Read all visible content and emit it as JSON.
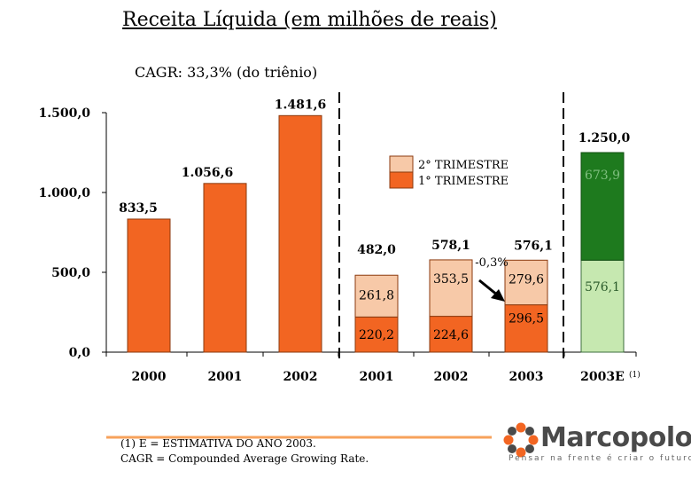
{
  "title": "Receita Líquida  (em milhões de reais)",
  "cagr_note": "CAGR: 33,3% (do triênio)",
  "footnotes": [
    "(1)  E  = ESTIMATIVA DO ANO 2003.",
    "CAGR = Compounded Average Growing Rate."
  ],
  "logo": {
    "name": "Marcopolo",
    "tagline": "Pensar na frente é criar o futuro.",
    "icon": "marcopolo-flower-icon"
  },
  "colors": {
    "bar_orange": "#F26522",
    "bar_outline": "#8B3A0F",
    "q2_light": "#F7C9A8",
    "q1_orange": "#F26522",
    "green_dark": "#1E7A1E",
    "green_light": "#C6E8B0",
    "axis": "#000000",
    "separator": "#000000",
    "footer_line": "#F7A25B"
  },
  "chart_data": {
    "type": "bar",
    "ylim": [
      0,
      1500
    ],
    "yticks": [
      0,
      500,
      1000,
      1500
    ],
    "ytick_labels": [
      "0,0",
      "500,0",
      "1.000,0",
      "1.500,0"
    ],
    "categories": [
      "2000",
      "2001",
      "2002",
      "2001",
      "2002",
      "2003",
      "2003E"
    ],
    "category_note": "(1)",
    "annual": [
      {
        "label": "2000",
        "value": 833.5,
        "value_label": "833,5"
      },
      {
        "label": "2001",
        "value": 1056.6,
        "value_label": "1.056,6"
      },
      {
        "label": "2002",
        "value": 1481.6,
        "value_label": "1.481,6"
      }
    ],
    "semester": [
      {
        "label": "2001",
        "q1": 220.2,
        "q1_label": "220,2",
        "q2": 261.8,
        "q2_label": "261,8",
        "total_label": "482,0"
      },
      {
        "label": "2002",
        "q1": 224.6,
        "q1_label": "224,6",
        "q2": 353.5,
        "q2_label": "353,5",
        "total_label": "578,1"
      },
      {
        "label": "2003",
        "q1": 296.5,
        "q1_label": "296,5",
        "q2": 279.6,
        "q2_label": "279,6",
        "total_label": "576,1"
      }
    ],
    "estimate": {
      "label": "2003E",
      "lower": 576.1,
      "lower_label": "576,1",
      "upper": 673.9,
      "upper_label": "673,9",
      "total_label": "1.250,0"
    },
    "legend": [
      {
        "name": "2° TRIMESTRE",
        "color": "#F7C9A8"
      },
      {
        "name": "1° TRIMESTRE",
        "color": "#F26522"
      }
    ],
    "annotation": {
      "text": "-0,3%"
    }
  }
}
